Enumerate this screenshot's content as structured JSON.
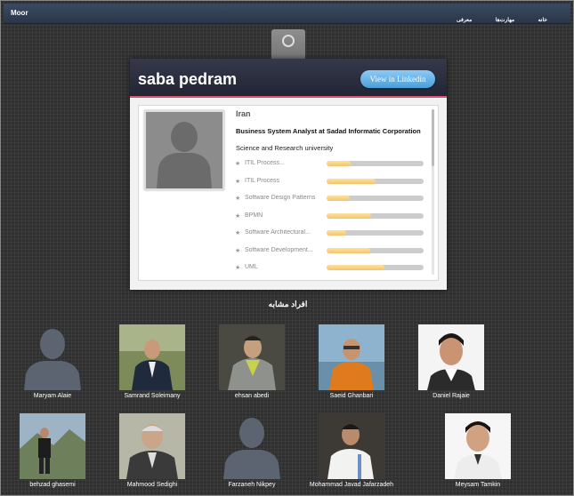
{
  "navbar": {
    "brand": "Moor",
    "links": [
      "خانه",
      "مهارت‌ها",
      "معرفی"
    ]
  },
  "profile": {
    "name": "saba pedram",
    "linkedin_button": "View in Linkedin",
    "country": "Iran",
    "headline": "Business System Analyst at Sadad Informatic Corporation",
    "school": "Science and Research university",
    "skills": [
      {
        "label": "ITIL Process...",
        "level": 0.25
      },
      {
        "label": "ITIL Process",
        "level": 0.5
      },
      {
        "label": "Software Design Patterns",
        "level": 0.24
      },
      {
        "label": "BPMN",
        "level": 0.46
      },
      {
        "label": "Software Architectural...",
        "level": 0.2
      },
      {
        "label": "Software Development...",
        "level": 0.45
      },
      {
        "label": "UML",
        "level": 0.6
      }
    ]
  },
  "similar": {
    "title": "افراد مشابه",
    "people": [
      {
        "name": "Maryam Alaie",
        "photo": "placeholder"
      },
      {
        "name": "Samrand Soleimany",
        "photo": "man-suit-outdoor"
      },
      {
        "name": "ehsan abedi",
        "photo": "man-gray-jacket"
      },
      {
        "name": "Saeid Ghanbari",
        "photo": "man-beach"
      },
      {
        "name": "Daniel Rajaie",
        "photo": "man-portrait"
      },
      {
        "name": "behzad ghasemi",
        "photo": "man-mountain"
      },
      {
        "name": "Mahmood Sedighi",
        "photo": "older-man-suit"
      },
      {
        "name": "Farzaneh Nikpey",
        "photo": "placeholder"
      },
      {
        "name": "Mohammad Javad Jafarzadeh",
        "photo": "man-white-shirt"
      },
      {
        "name": "Meysam Tamkin",
        "photo": "man-portrait-light"
      }
    ]
  }
}
